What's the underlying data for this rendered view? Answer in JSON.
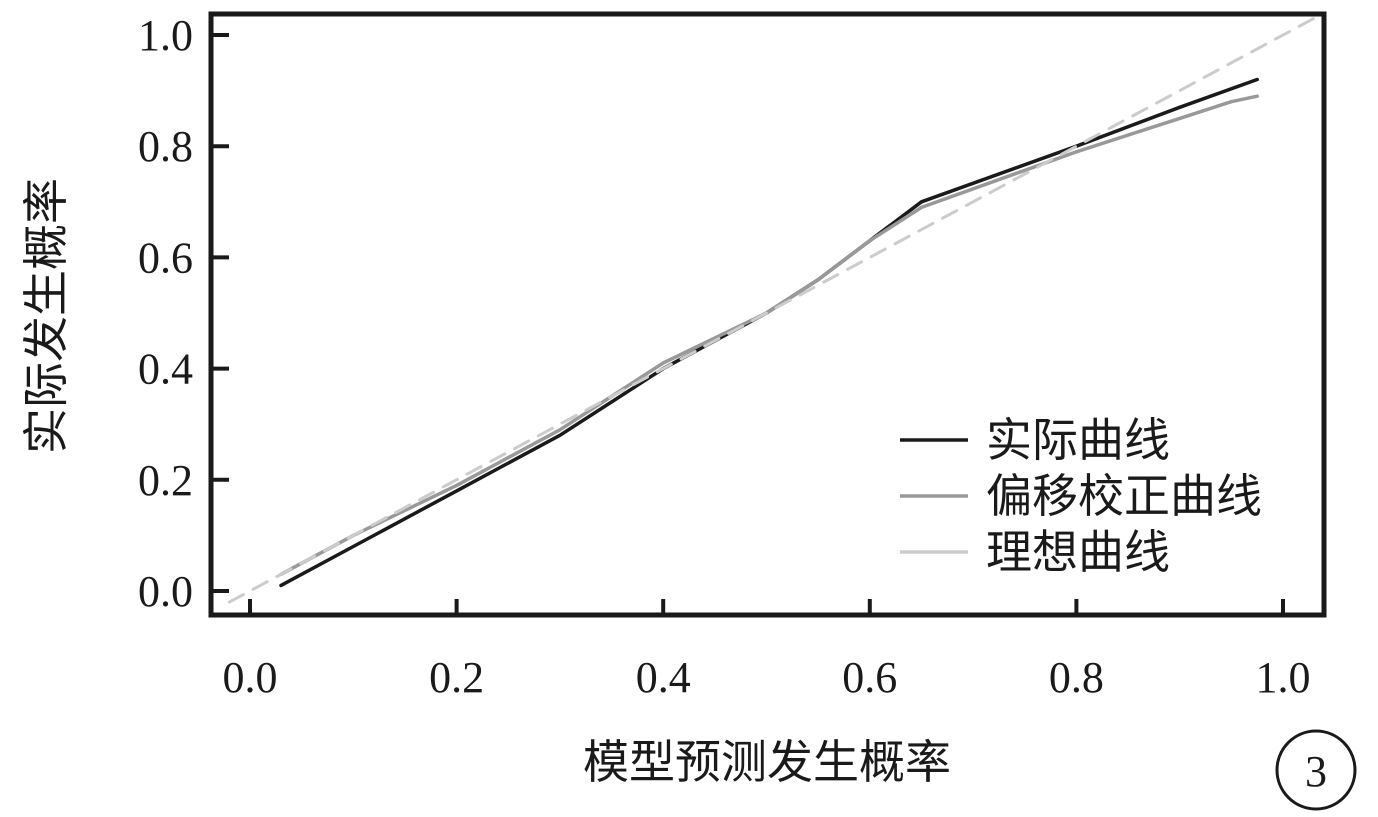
{
  "chart_data": {
    "type": "line",
    "xlabel": "模型预测发生概率",
    "ylabel": "实际发生概率",
    "xlim": [
      0.0,
      1.0
    ],
    "ylim": [
      0.0,
      1.0
    ],
    "x_ticks": [
      "0.0",
      "0.2",
      "0.4",
      "0.6",
      "0.8",
      "1.0"
    ],
    "y_ticks": [
      "0.0",
      "0.2",
      "0.4",
      "0.6",
      "0.8",
      "1.0"
    ],
    "grid": false,
    "legend_position": "bottom-right",
    "series": [
      {
        "name": "实际曲线",
        "color": "#1a1a1a",
        "dash": false,
        "points": [
          [
            0.03,
            0.01
          ],
          [
            0.1,
            0.08
          ],
          [
            0.2,
            0.18
          ],
          [
            0.3,
            0.28
          ],
          [
            0.35,
            0.34
          ],
          [
            0.4,
            0.4
          ],
          [
            0.5,
            0.5
          ],
          [
            0.55,
            0.56
          ],
          [
            0.6,
            0.63
          ],
          [
            0.65,
            0.7
          ],
          [
            0.8,
            0.8
          ],
          [
            0.9,
            0.87
          ],
          [
            0.975,
            0.92
          ]
        ]
      },
      {
        "name": "偏移校正曲线",
        "color": "#999999",
        "dash": false,
        "points": [
          [
            0.03,
            0.03
          ],
          [
            0.1,
            0.1
          ],
          [
            0.2,
            0.19
          ],
          [
            0.3,
            0.29
          ],
          [
            0.35,
            0.35
          ],
          [
            0.4,
            0.41
          ],
          [
            0.5,
            0.5
          ],
          [
            0.55,
            0.56
          ],
          [
            0.6,
            0.63
          ],
          [
            0.65,
            0.69
          ],
          [
            0.8,
            0.79
          ],
          [
            0.9,
            0.85
          ],
          [
            0.95,
            0.88
          ],
          [
            0.975,
            0.89
          ]
        ]
      },
      {
        "name": "理想曲线",
        "color": "#cccccc",
        "dash": true,
        "points": [
          [
            -0.02,
            -0.02
          ],
          [
            1.04,
            1.04
          ]
        ]
      }
    ]
  },
  "badge": {
    "label": "3"
  }
}
